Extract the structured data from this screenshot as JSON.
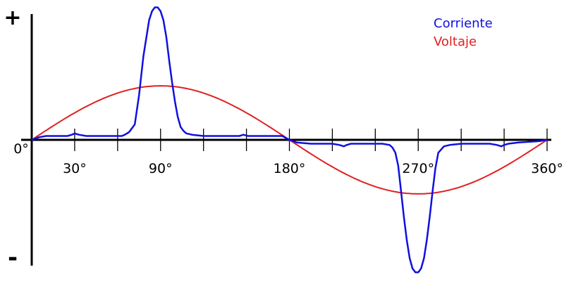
{
  "chart_data": {
    "type": "line",
    "y_sign_positive": "+",
    "y_sign_negative": "-",
    "x_origin_label": "0°",
    "x_tick_labels": [
      {
        "deg": 30,
        "label": "30°"
      },
      {
        "deg": 90,
        "label": "90°"
      },
      {
        "deg": 180,
        "label": "180°"
      },
      {
        "deg": 270,
        "label": "270°"
      },
      {
        "deg": 360,
        "label": "360°"
      }
    ],
    "x_ticks_deg": [
      30,
      60,
      90,
      120,
      150,
      180,
      210,
      240,
      270,
      300,
      330,
      360
    ],
    "xlim": [
      0,
      360
    ],
    "ylim": [
      -1.0,
      1.0
    ],
    "legend_position": "top-right",
    "series": [
      {
        "name": "Corriente",
        "color": "#1010e0",
        "x": [
          0,
          5,
          10,
          20,
          25,
          28,
          30,
          33,
          38,
          50,
          60,
          63,
          65,
          68,
          72,
          75,
          78,
          82,
          84,
          86,
          88,
          90,
          92,
          94,
          96,
          98,
          100,
          102,
          104,
          106,
          108,
          112,
          120,
          135,
          145,
          148,
          151,
          155,
          165,
          175,
          180,
          185,
          195,
          210,
          215,
          218,
          220,
          223,
          230,
          240,
          245,
          250,
          252,
          254,
          256,
          258,
          260,
          262,
          264,
          266,
          268,
          270,
          272,
          274,
          276,
          278,
          280,
          282,
          284,
          288,
          292,
          300,
          320,
          325,
          328,
          330,
          333,
          340,
          355,
          360
        ],
        "values": [
          0,
          0.02,
          0.03,
          0.03,
          0.03,
          0.04,
          0.05,
          0.04,
          0.03,
          0.03,
          0.03,
          0.03,
          0.04,
          0.06,
          0.12,
          0.35,
          0.65,
          0.93,
          1.0,
          1.03,
          1.03,
          1.0,
          0.93,
          0.8,
          0.62,
          0.45,
          0.3,
          0.18,
          0.1,
          0.07,
          0.05,
          0.04,
          0.03,
          0.03,
          0.03,
          0.04,
          0.03,
          0.03,
          0.03,
          0.03,
          0.0,
          -0.02,
          -0.03,
          -0.03,
          -0.04,
          -0.05,
          -0.04,
          -0.03,
          -0.03,
          -0.03,
          -0.03,
          -0.04,
          -0.06,
          -0.1,
          -0.2,
          -0.4,
          -0.6,
          -0.78,
          -0.92,
          -1.0,
          -1.03,
          -1.03,
          -1.0,
          -0.92,
          -0.78,
          -0.6,
          -0.4,
          -0.22,
          -0.1,
          -0.05,
          -0.04,
          -0.03,
          -0.03,
          -0.04,
          -0.05,
          -0.04,
          -0.03,
          -0.02,
          -0.01,
          0.0
        ]
      },
      {
        "name": "Voltaje",
        "color": "#e02020",
        "function": "sine",
        "amplitude": 0.42,
        "period_deg": 360
      }
    ]
  }
}
